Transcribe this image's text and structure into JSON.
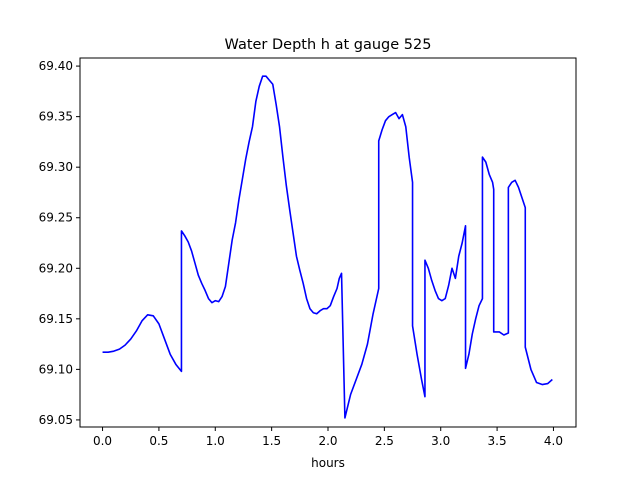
{
  "chart_data": {
    "type": "line",
    "title": "Water Depth h at gauge 525",
    "xlabel": "hours",
    "ylabel": "",
    "xlim": [
      -0.2,
      4.2
    ],
    "ylim": [
      69.043,
      69.408
    ],
    "xticks": [
      "0.0",
      "0.5",
      "1.0",
      "1.5",
      "2.0",
      "2.5",
      "3.0",
      "3.5",
      "4.0"
    ],
    "yticks": [
      "69.05",
      "69.10",
      "69.15",
      "69.20",
      "69.25",
      "69.30",
      "69.35",
      "69.40"
    ],
    "grid": false,
    "series": [
      {
        "color": "#0000ff",
        "points": [
          [
            0.0,
            69.117
          ],
          [
            0.05,
            69.117
          ],
          [
            0.1,
            69.118
          ],
          [
            0.15,
            69.12
          ],
          [
            0.2,
            69.124
          ],
          [
            0.25,
            69.13
          ],
          [
            0.3,
            69.138
          ],
          [
            0.35,
            69.148
          ],
          [
            0.4,
            69.154
          ],
          [
            0.45,
            69.153
          ],
          [
            0.5,
            69.145
          ],
          [
            0.55,
            69.13
          ],
          [
            0.6,
            69.115
          ],
          [
            0.65,
            69.105
          ],
          [
            0.7,
            69.098
          ],
          [
            0.7,
            69.237
          ],
          [
            0.73,
            69.232
          ],
          [
            0.76,
            69.226
          ],
          [
            0.79,
            69.217
          ],
          [
            0.82,
            69.205
          ],
          [
            0.85,
            69.193
          ],
          [
            0.88,
            69.185
          ],
          [
            0.91,
            69.178
          ],
          [
            0.94,
            69.17
          ],
          [
            0.97,
            69.166
          ],
          [
            1.0,
            69.168
          ],
          [
            1.03,
            69.167
          ],
          [
            1.06,
            69.172
          ],
          [
            1.09,
            69.182
          ],
          [
            1.12,
            69.205
          ],
          [
            1.15,
            69.228
          ],
          [
            1.18,
            69.245
          ],
          [
            1.21,
            69.268
          ],
          [
            1.24,
            69.288
          ],
          [
            1.27,
            69.308
          ],
          [
            1.3,
            69.325
          ],
          [
            1.33,
            69.34
          ],
          [
            1.36,
            69.365
          ],
          [
            1.39,
            69.38
          ],
          [
            1.42,
            69.39
          ],
          [
            1.45,
            69.39
          ],
          [
            1.48,
            69.386
          ],
          [
            1.51,
            69.382
          ],
          [
            1.54,
            69.362
          ],
          [
            1.57,
            69.34
          ],
          [
            1.6,
            69.31
          ],
          [
            1.63,
            69.282
          ],
          [
            1.66,
            69.258
          ],
          [
            1.69,
            69.235
          ],
          [
            1.72,
            69.212
          ],
          [
            1.75,
            69.198
          ],
          [
            1.78,
            69.185
          ],
          [
            1.81,
            69.17
          ],
          [
            1.84,
            69.16
          ],
          [
            1.87,
            69.156
          ],
          [
            1.9,
            69.155
          ],
          [
            1.93,
            69.158
          ],
          [
            1.96,
            69.16
          ],
          [
            1.99,
            69.16
          ],
          [
            2.02,
            69.163
          ],
          [
            2.05,
            69.172
          ],
          [
            2.08,
            69.18
          ],
          [
            2.1,
            69.19
          ],
          [
            2.12,
            69.195
          ],
          [
            2.15,
            69.052
          ],
          [
            2.2,
            69.075
          ],
          [
            2.25,
            69.09
          ],
          [
            2.3,
            69.105
          ],
          [
            2.35,
            69.125
          ],
          [
            2.4,
            69.155
          ],
          [
            2.45,
            69.18
          ],
          [
            2.45,
            69.326
          ],
          [
            2.48,
            69.337
          ],
          [
            2.51,
            69.346
          ],
          [
            2.54,
            69.35
          ],
          [
            2.57,
            69.352
          ],
          [
            2.6,
            69.354
          ],
          [
            2.63,
            69.348
          ],
          [
            2.66,
            69.352
          ],
          [
            2.69,
            69.34
          ],
          [
            2.72,
            69.31
          ],
          [
            2.75,
            69.285
          ],
          [
            2.75,
            69.143
          ],
          [
            2.79,
            69.115
          ],
          [
            2.83,
            69.09
          ],
          [
            2.86,
            69.073
          ],
          [
            2.86,
            69.208
          ],
          [
            2.89,
            69.2
          ],
          [
            2.92,
            69.188
          ],
          [
            2.95,
            69.178
          ],
          [
            2.98,
            69.17
          ],
          [
            3.01,
            69.168
          ],
          [
            3.04,
            69.17
          ],
          [
            3.07,
            69.183
          ],
          [
            3.1,
            69.2
          ],
          [
            3.13,
            69.19
          ],
          [
            3.16,
            69.212
          ],
          [
            3.19,
            69.225
          ],
          [
            3.22,
            69.242
          ],
          [
            3.22,
            69.101
          ],
          [
            3.25,
            69.115
          ],
          [
            3.28,
            69.135
          ],
          [
            3.31,
            69.15
          ],
          [
            3.34,
            69.163
          ],
          [
            3.37,
            69.17
          ],
          [
            3.37,
            69.31
          ],
          [
            3.4,
            69.305
          ],
          [
            3.43,
            69.293
          ],
          [
            3.46,
            69.285
          ],
          [
            3.47,
            69.278
          ],
          [
            3.47,
            69.137
          ],
          [
            3.52,
            69.137
          ],
          [
            3.56,
            69.134
          ],
          [
            3.6,
            69.136
          ],
          [
            3.6,
            69.28
          ],
          [
            3.63,
            69.285
          ],
          [
            3.66,
            69.287
          ],
          [
            3.69,
            69.28
          ],
          [
            3.72,
            69.27
          ],
          [
            3.75,
            69.26
          ],
          [
            3.75,
            69.122
          ],
          [
            3.8,
            69.1
          ],
          [
            3.85,
            69.087
          ],
          [
            3.9,
            69.085
          ],
          [
            3.95,
            69.086
          ],
          [
            3.99,
            69.09
          ]
        ]
      }
    ]
  }
}
